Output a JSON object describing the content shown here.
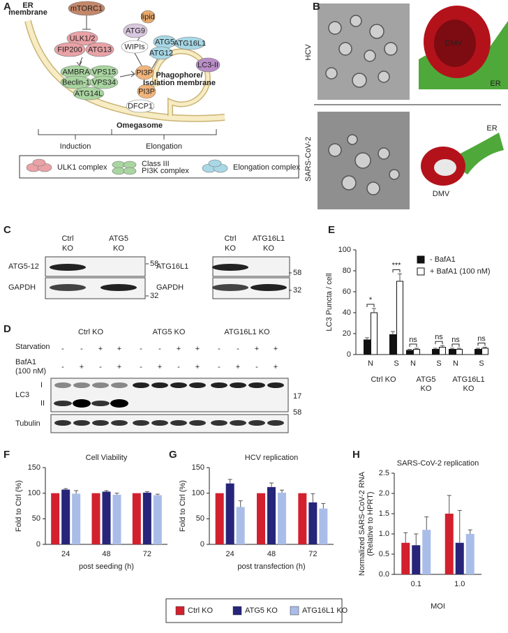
{
  "panel_labels": [
    "A",
    "B",
    "C",
    "D",
    "E",
    "F",
    "G",
    "H"
  ],
  "diagram": {
    "er_membrane": [
      "ER",
      "membrane"
    ],
    "nodes": [
      "mTORC1",
      "ULK1/2",
      "FIP200",
      "ATG13",
      "AMBRA",
      "VPS15",
      "Beclin-1",
      "VPS34",
      "ATG14L",
      "lipid",
      "ATG9",
      "WIPIs",
      "ATG5",
      "ATG16L1",
      "ATG12",
      "LC3-II",
      "PI3P",
      "PI3P",
      "DFCP1"
    ],
    "phagophore": [
      "Phagophore/",
      "Isolation membrane"
    ],
    "omegasome": "Omegasome",
    "stages": [
      "Induction",
      "Elongation"
    ],
    "legend": [
      [
        "ULK1 complex"
      ],
      [
        "Class III",
        "PI3K complex"
      ],
      [
        "Elongation complex"
      ]
    ]
  },
  "em": {
    "rows": [
      "HCV",
      "SARS-CoV-2"
    ],
    "hcv_labels": [
      "DMV",
      "ER"
    ],
    "sars_labels": [
      "ER",
      "DMV"
    ]
  },
  "blot_c": [
    {
      "headers": [
        [
          "Ctrl",
          "KO"
        ],
        [
          "ATG5",
          "KO"
        ]
      ],
      "rows": [
        "ATG5-12",
        "GAPDH"
      ],
      "markers": [
        "58",
        "32"
      ]
    },
    {
      "headers": [
        [
          "Ctrl",
          "KO"
        ],
        [
          "ATG16L1",
          "KO"
        ]
      ],
      "rows": [
        "ATG16L1",
        "GAPDH"
      ],
      "markers": [
        "58",
        "32"
      ]
    }
  ],
  "blot_d": {
    "groups": [
      "Ctrl KO",
      "ATG5 KO",
      "ATG16L1 KO"
    ],
    "conditions": [
      {
        "label": [
          "Starvation"
        ],
        "signs": [
          "-",
          "-",
          "+",
          "+",
          "-",
          "-",
          "+",
          "+",
          "-",
          "-",
          "+",
          "+"
        ]
      },
      {
        "label": [
          "BafA1",
          "(100 nM)"
        ],
        "signs": [
          "-",
          "+",
          "-",
          "+",
          "-",
          "+",
          "-",
          "+",
          "-",
          "+",
          "-",
          "+"
        ]
      }
    ],
    "rows": [
      "LC3",
      "Tubulin"
    ],
    "bands": [
      "I",
      "II"
    ],
    "markers": [
      "17",
      "58"
    ]
  },
  "chart_data": [
    {
      "type": "bar",
      "ylabel": [
        "LC3 Puncta / cell"
      ],
      "categories": [
        "N",
        "S",
        "N",
        "S",
        "N",
        "S"
      ],
      "groups": [
        [
          "Ctrl KO"
        ],
        [
          "ATG5",
          "KO"
        ],
        [
          "ATG16L1",
          "KO"
        ]
      ],
      "series": [
        {
          "name": "- BafA1",
          "color": "#111111",
          "values": [
            14,
            19,
            4,
            5,
            5,
            5
          ],
          "errors": [
            2,
            3,
            1,
            1,
            1,
            1
          ]
        },
        {
          "name": "+ BafA1 (100 nM)",
          "color": "#ffffff",
          "values": [
            40,
            70,
            5,
            7,
            5,
            6
          ],
          "errors": [
            4,
            7,
            1,
            1.5,
            1,
            1
          ]
        }
      ],
      "significance": [
        "*",
        "***",
        "ns",
        "ns",
        "ns",
        "ns"
      ],
      "ylim": [
        0,
        100
      ],
      "yticks": [
        0,
        20,
        40,
        60,
        80,
        100
      ]
    },
    {
      "type": "bar",
      "title": "Cell Viability",
      "ylabel": [
        "Fold to Ctrl (%)"
      ],
      "xlabel": "post seeding (h)",
      "categories": [
        "24",
        "48",
        "72"
      ],
      "series": [
        {
          "values": [
            100,
            100,
            100
          ]
        },
        {
          "values": [
            107,
            103,
            101
          ],
          "errors": [
            2,
            2,
            2
          ]
        },
        {
          "values": [
            99,
            97,
            96
          ],
          "errors": [
            6,
            3,
            2
          ]
        }
      ],
      "ylim": [
        0,
        150
      ],
      "yticks": [
        0,
        50,
        100,
        150
      ]
    },
    {
      "type": "bar",
      "title": "HCV replication",
      "ylabel": [
        "Fold to Ctrl (%)"
      ],
      "xlabel": "post transfection (h)",
      "categories": [
        "24",
        "48",
        "72"
      ],
      "series": [
        {
          "values": [
            100,
            100,
            100
          ]
        },
        {
          "values": [
            119,
            112,
            82
          ],
          "errors": [
            8,
            8,
            17
          ]
        },
        {
          "values": [
            73,
            101,
            70
          ],
          "errors": [
            12,
            5,
            10
          ]
        }
      ],
      "ylim": [
        0,
        150
      ],
      "yticks": [
        0,
        50,
        100,
        150
      ]
    },
    {
      "type": "bar",
      "title": "SARS-CoV-2 replication",
      "ylabel": [
        "Normalized SARS-CoV-2 RNA",
        "(Relative to HPRT)"
      ],
      "xlabel": "MOI",
      "categories": [
        "0.1",
        "1.0"
      ],
      "series": [
        {
          "values": [
            0.78,
            1.5
          ],
          "errors": [
            0.25,
            0.45
          ]
        },
        {
          "values": [
            0.72,
            0.78
          ],
          "errors": [
            0.28,
            0.8
          ]
        },
        {
          "values": [
            1.1,
            1.0
          ],
          "errors": [
            0.32,
            0.1
          ]
        }
      ],
      "ylim": [
        0,
        2.5
      ],
      "yticks": [
        {
          "value": 0,
          "label": "0.0"
        },
        0.5,
        {
          "value": 1,
          "label": "1.0"
        },
        1.5,
        {
          "value": 2,
          "label": "2.0"
        },
        2.5
      ]
    }
  ],
  "legend": [
    {
      "name": "Ctrl KO",
      "color": "#d2202f"
    },
    {
      "name": "ATG5 KO",
      "color": "#26257a"
    },
    {
      "name": "ATG16L1 KO",
      "color": "#a9bde8"
    }
  ]
}
